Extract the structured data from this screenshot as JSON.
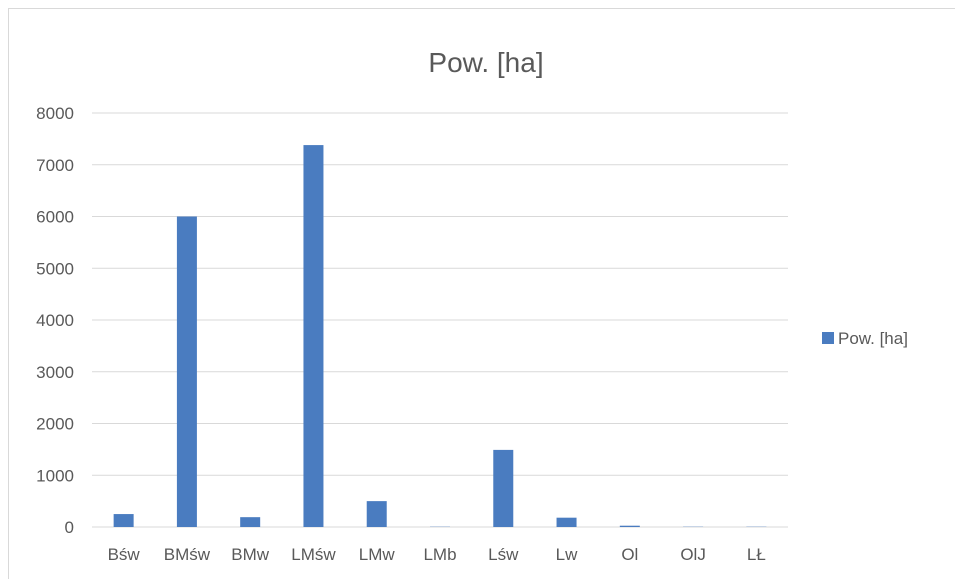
{
  "chart_data": {
    "type": "bar",
    "title": "Pow. [ha]",
    "xlabel": "",
    "ylabel": "",
    "categories": [
      "Bśw",
      "BMśw",
      "BMw",
      "LMśw",
      "LMw",
      "LMb",
      "Lśw",
      "Lw",
      "Ol",
      "OlJ",
      "LŁ"
    ],
    "series": [
      {
        "name": "Pow. [ha]",
        "values": [
          250,
          6000,
          190,
          7380,
          500,
          5,
          1490,
          180,
          25,
          5,
          5
        ],
        "color": "#4a7cc0"
      }
    ],
    "ylim": [
      0,
      8000
    ],
    "yticks": [
      0,
      1000,
      2000,
      3000,
      4000,
      5000,
      6000,
      7000,
      8000
    ],
    "grid": true,
    "legend_position": "right",
    "colors": {
      "grid": "#d9d9d9",
      "text": "#595959"
    }
  }
}
